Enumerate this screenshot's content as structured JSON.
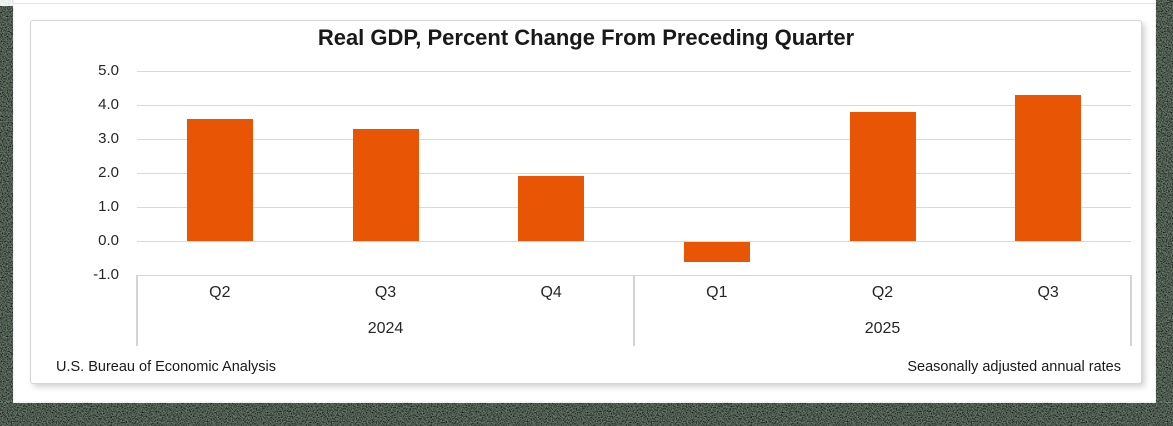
{
  "chart_data": {
    "type": "bar",
    "title": "Real GDP, Percent Change From Preceding Quarter",
    "categories": [
      "Q2",
      "Q3",
      "Q4",
      "Q1",
      "Q2",
      "Q3"
    ],
    "groups": [
      {
        "label": "2024",
        "span": 3
      },
      {
        "label": "2025",
        "span": 3
      }
    ],
    "values": [
      3.6,
      3.3,
      1.9,
      -0.6,
      3.8,
      4.3
    ],
    "ylim": [
      -1.0,
      5.0
    ],
    "ytick_step": 1.0,
    "ytick_labels": [
      "5.0",
      "4.0",
      "3.0",
      "2.0",
      "1.0",
      "0.0",
      "-1.0"
    ],
    "grid": true,
    "legend": "none",
    "bar_color": "#E85504",
    "gridline_color": "#D9D9D9",
    "axis_line_color": "#D4D4D4"
  },
  "footer": {
    "left": "U.S. Bureau of Economic Analysis",
    "right": "Seasonally adjusted annual rates"
  }
}
